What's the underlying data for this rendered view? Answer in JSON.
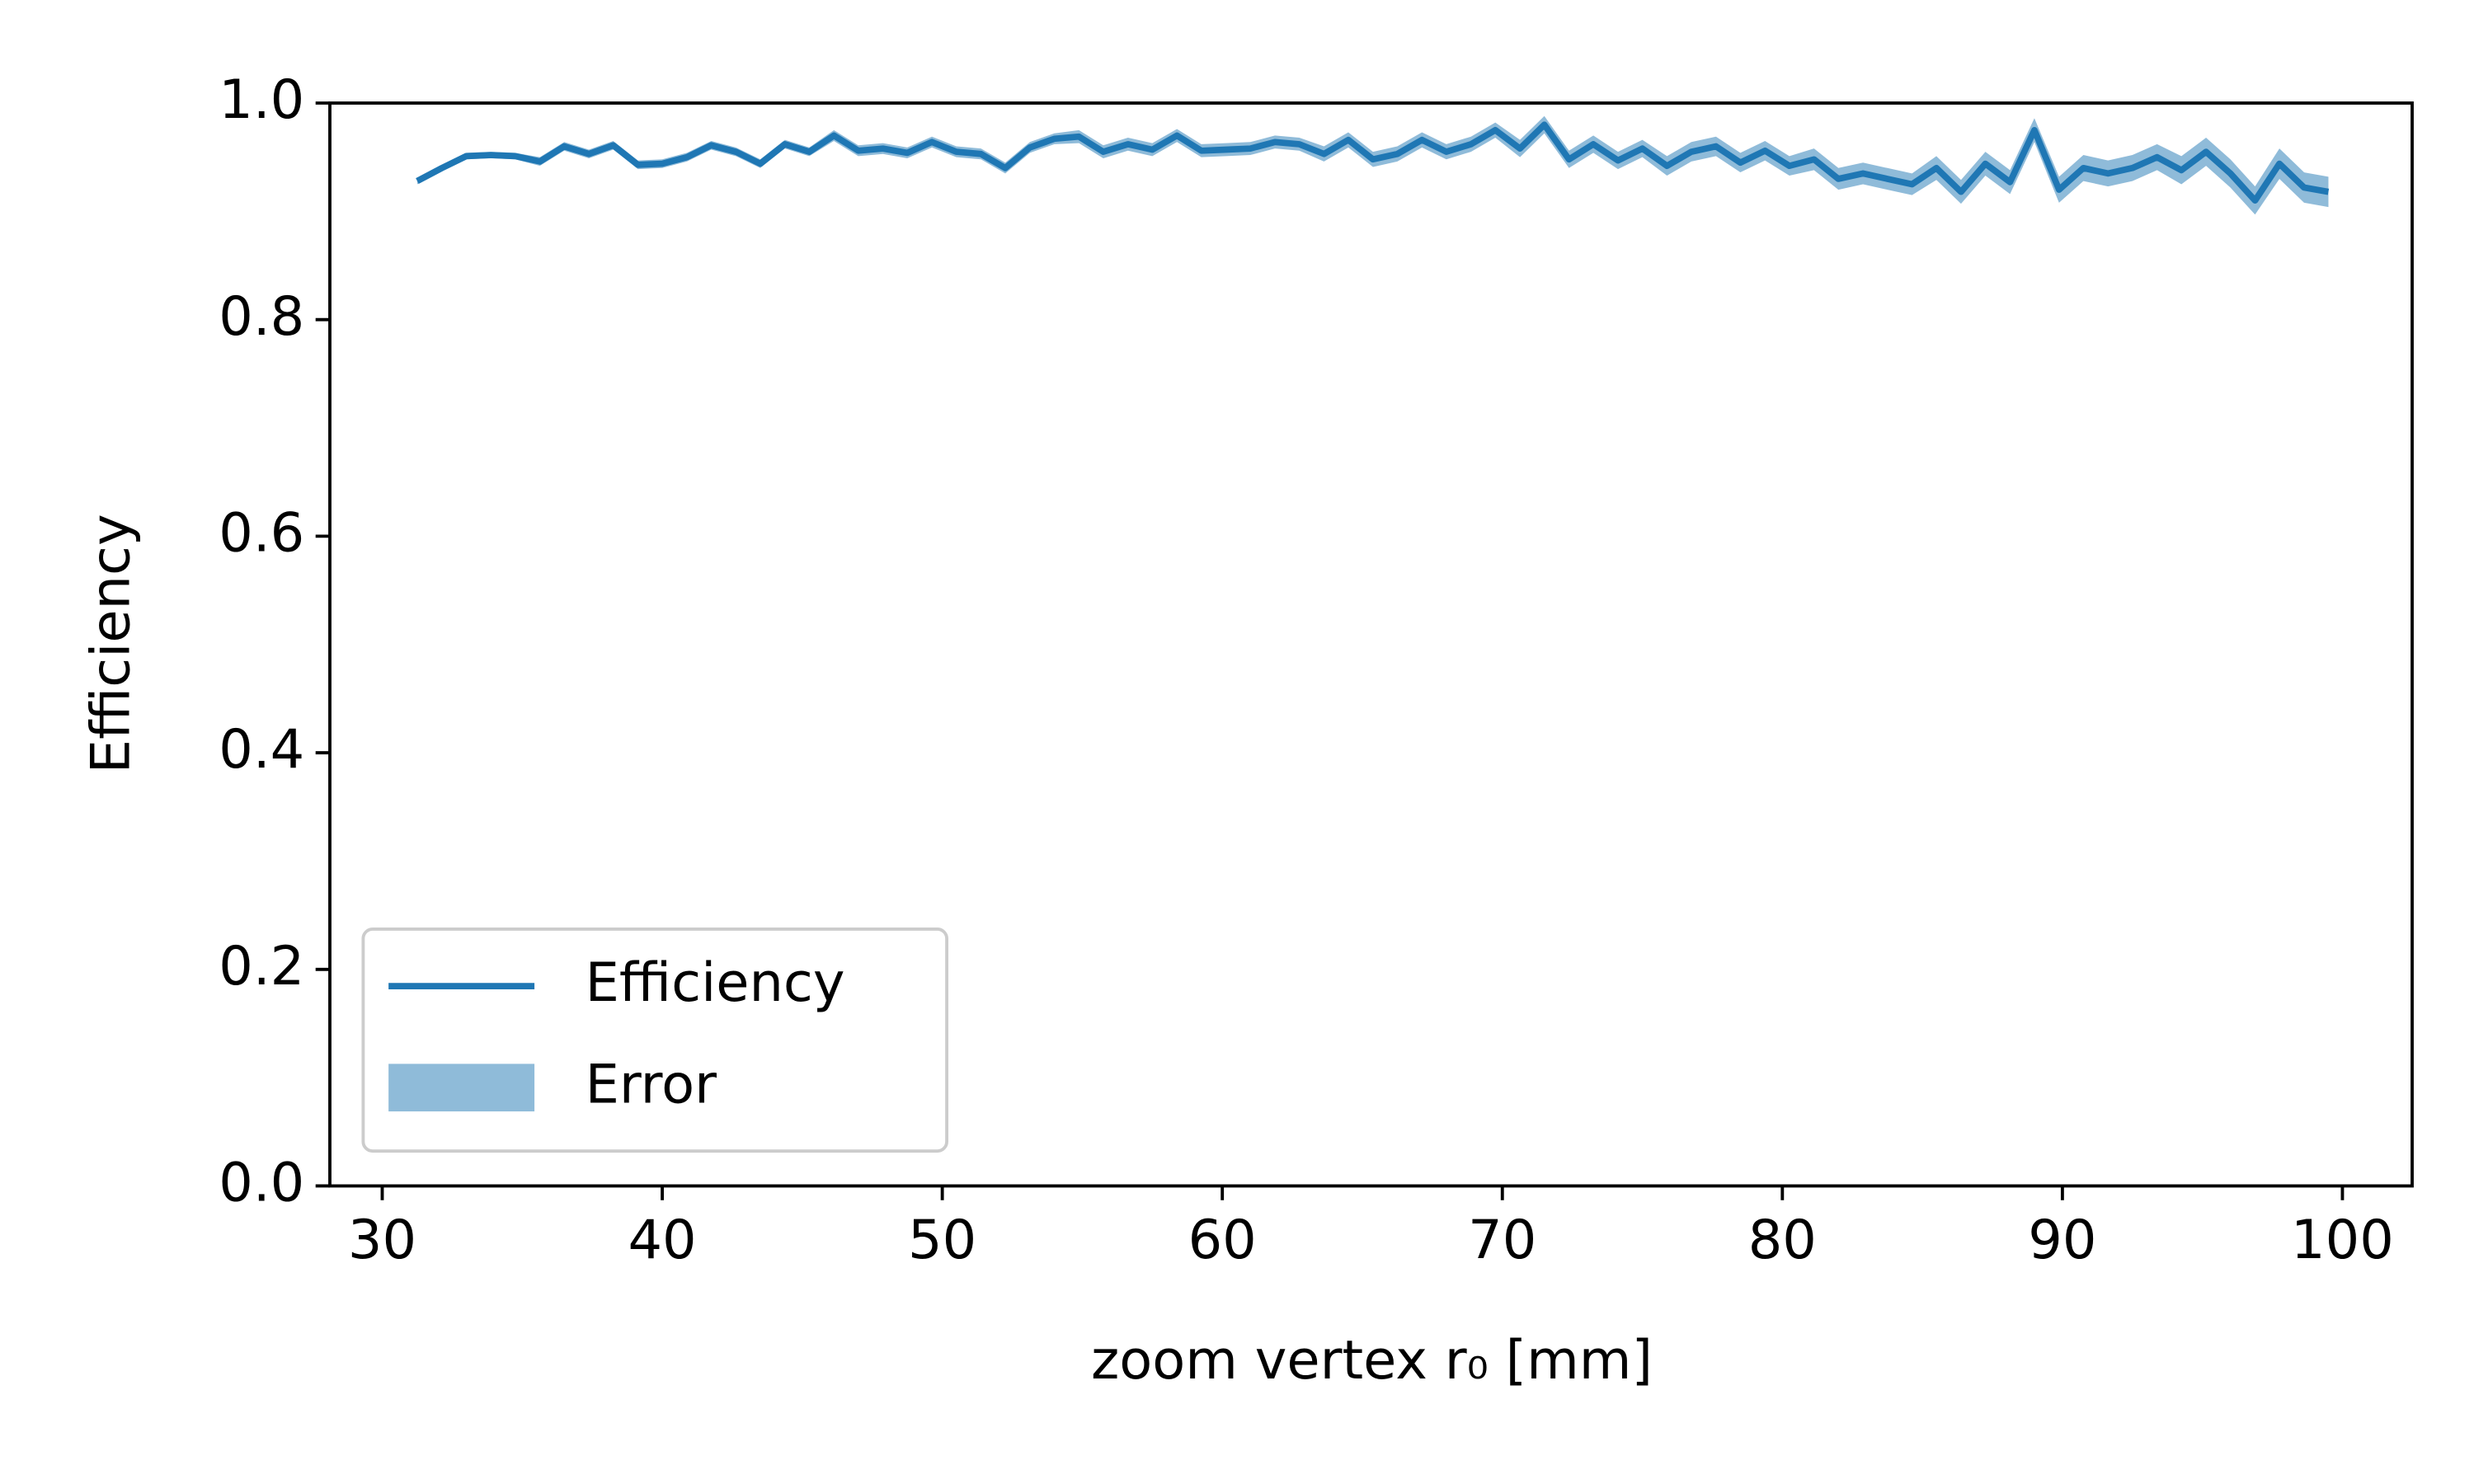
{
  "chart_data": {
    "type": "line",
    "xlabel": "zoom vertex r₀ [mm]",
    "ylabel": "Efficiency",
    "x": [
      31.25,
      32.13,
      33.0,
      33.88,
      34.75,
      35.63,
      36.5,
      37.38,
      38.25,
      39.13,
      40.0,
      40.88,
      41.75,
      42.63,
      43.5,
      44.38,
      45.25,
      46.13,
      47.0,
      47.88,
      48.75,
      49.63,
      50.5,
      51.38,
      52.25,
      53.13,
      54.0,
      54.88,
      55.75,
      56.63,
      57.5,
      58.38,
      59.25,
      60.13,
      61.0,
      61.88,
      62.75,
      63.63,
      64.5,
      65.38,
      66.25,
      67.13,
      68.0,
      68.88,
      69.75,
      70.63,
      71.5,
      72.38,
      73.25,
      74.13,
      75.0,
      75.88,
      76.75,
      77.63,
      78.5,
      79.38,
      80.25,
      81.13,
      82.0,
      82.88,
      83.75,
      84.63,
      85.5,
      86.38,
      87.25,
      88.13,
      89.0,
      89.88,
      90.75,
      91.63,
      92.5,
      93.38,
      94.25,
      95.13,
      96.0,
      96.88,
      97.75,
      98.63,
      99.5
    ],
    "series": [
      {
        "name": "Efficiency",
        "color": "#1f77b4",
        "values": [
          0.928,
          0.94,
          0.951,
          0.952,
          0.951,
          0.946,
          0.96,
          0.953,
          0.961,
          0.943,
          0.944,
          0.95,
          0.961,
          0.955,
          0.944,
          0.962,
          0.955,
          0.97,
          0.956,
          0.958,
          0.954,
          0.964,
          0.955,
          0.953,
          0.94,
          0.959,
          0.967,
          0.969,
          0.955,
          0.962,
          0.957,
          0.97,
          0.956,
          0.957,
          0.958,
          0.964,
          0.962,
          0.953,
          0.966,
          0.948,
          0.953,
          0.966,
          0.955,
          0.962,
          0.975,
          0.958,
          0.98,
          0.948,
          0.962,
          0.947,
          0.958,
          0.942,
          0.955,
          0.96,
          0.945,
          0.956,
          0.942,
          0.948,
          0.93,
          0.935,
          0.93,
          0.925,
          0.94,
          0.918,
          0.944,
          0.927,
          0.975,
          0.92,
          0.94,
          0.935,
          0.94,
          0.95,
          0.938,
          0.955,
          0.935,
          0.91,
          0.944,
          0.922,
          0.918
        ]
      }
    ],
    "band": {
      "name": "Error",
      "color": "#1f77b4",
      "errors": [
        0.003,
        0.003,
        0.003,
        0.003,
        0.003,
        0.004,
        0.004,
        0.004,
        0.004,
        0.004,
        0.004,
        0.004,
        0.004,
        0.004,
        0.004,
        0.004,
        0.004,
        0.005,
        0.005,
        0.005,
        0.005,
        0.005,
        0.005,
        0.005,
        0.005,
        0.005,
        0.005,
        0.006,
        0.006,
        0.006,
        0.006,
        0.006,
        0.006,
        0.006,
        0.006,
        0.006,
        0.006,
        0.007,
        0.007,
        0.007,
        0.007,
        0.007,
        0.007,
        0.007,
        0.007,
        0.008,
        0.008,
        0.008,
        0.008,
        0.008,
        0.008,
        0.009,
        0.009,
        0.009,
        0.009,
        0.009,
        0.009,
        0.01,
        0.01,
        0.01,
        0.01,
        0.01,
        0.011,
        0.011,
        0.011,
        0.011,
        0.011,
        0.012,
        0.012,
        0.012,
        0.012,
        0.012,
        0.013,
        0.013,
        0.013,
        0.013,
        0.014,
        0.014,
        0.014
      ]
    },
    "xlim": [
      28.13,
      102.49
    ],
    "xticks": [
      30,
      40,
      50,
      60,
      70,
      80,
      90,
      100
    ],
    "ylim": [
      0.0,
      1.0
    ],
    "yticks": [
      {
        "value": 0,
        "label": "0.0"
      },
      {
        "value": 0.2,
        "label": "0.2"
      },
      {
        "value": 0.4,
        "label": "0.4"
      },
      {
        "value": 0.6,
        "label": "0.6"
      },
      {
        "value": 0.8,
        "label": "0.8"
      },
      {
        "value": 1,
        "label": "1.0"
      }
    ],
    "grid": false,
    "legend": "lower left"
  }
}
